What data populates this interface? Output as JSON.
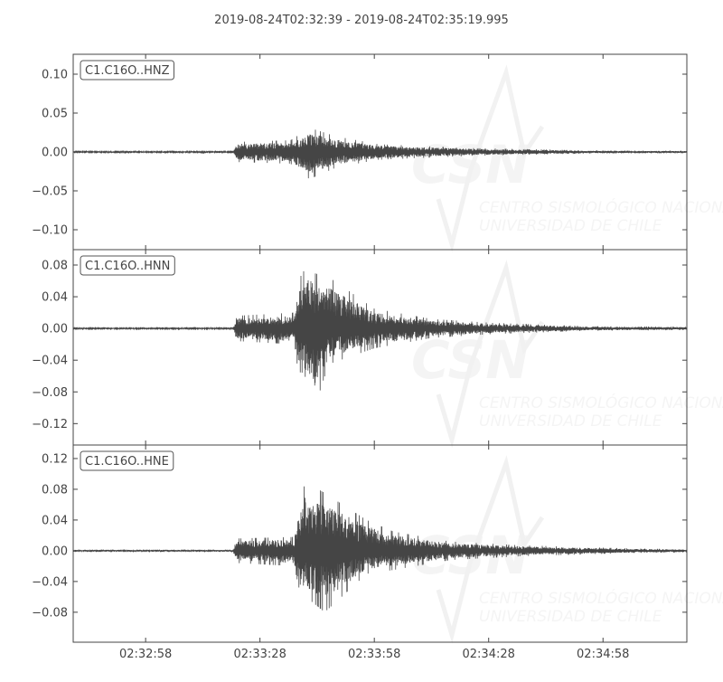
{
  "chart_data": {
    "type": "line",
    "title": "2019-08-24T02:32:39  -  2019-08-24T02:35:19.995",
    "x_range": [
      "02:32:39",
      "02:35:19.995"
    ],
    "x_ticks": [
      "02:32:58",
      "02:33:28",
      "02:33:58",
      "02:34:28",
      "02:34:58"
    ],
    "line_color": "#454545",
    "grid": false,
    "watermark": {
      "logo": "CSN",
      "line1": "CENTRO SISMOLÓGICO NACIONAL",
      "line2": "UNIVERSIDAD DE CHILE"
    },
    "traces": [
      {
        "name": "C1.C16O..HNZ",
        "ylim": [
          -0.1256,
          0.1256
        ],
        "y_ticks": [
          "0.10",
          "0.05",
          "0.00",
          "−0.05",
          "−0.10"
        ],
        "y_tick_values": [
          0.1,
          0.05,
          0.0,
          -0.05,
          -0.1
        ],
        "envelope": [
          {
            "t": "02:32:39",
            "max": 0.001,
            "min": -0.001
          },
          {
            "t": "02:33:21",
            "max": 0.001,
            "min": -0.001
          },
          {
            "t": "02:33:22",
            "max": 0.013,
            "min": -0.013
          },
          {
            "t": "02:33:36",
            "max": 0.015,
            "min": -0.015
          },
          {
            "t": "02:33:41",
            "max": 0.031,
            "min": -0.035
          },
          {
            "t": "02:33:48",
            "max": 0.02,
            "min": -0.02
          },
          {
            "t": "02:33:59",
            "max": 0.01,
            "min": -0.01
          },
          {
            "t": "02:34:23",
            "max": 0.005,
            "min": -0.005
          },
          {
            "t": "02:34:54",
            "max": 0.002,
            "min": -0.002
          },
          {
            "t": "02:35:20",
            "max": 0.0015,
            "min": -0.0015
          }
        ]
      },
      {
        "name": "C1.C16O..HNN",
        "ylim": [
          -0.147,
          0.0994
        ],
        "y_ticks": [
          "0.08",
          "0.04",
          "0.00",
          "−0.04",
          "−0.08",
          "−0.12"
        ],
        "y_tick_values": [
          0.08,
          0.04,
          0.0,
          -0.04,
          -0.08,
          -0.12
        ],
        "envelope": [
          {
            "t": "02:32:39",
            "max": 0.001,
            "min": -0.001
          },
          {
            "t": "02:33:21",
            "max": 0.001,
            "min": -0.001
          },
          {
            "t": "02:33:22",
            "max": 0.016,
            "min": -0.016
          },
          {
            "t": "02:33:37",
            "max": 0.02,
            "min": -0.02
          },
          {
            "t": "02:33:38",
            "max": 0.06,
            "min": -0.07
          },
          {
            "t": "02:33:41",
            "max": 0.085,
            "min": -0.08
          },
          {
            "t": "02:33:42",
            "max": 0.07,
            "min": -0.105
          },
          {
            "t": "02:33:46",
            "max": 0.065,
            "min": -0.045
          },
          {
            "t": "02:33:58",
            "max": 0.025,
            "min": -0.025
          },
          {
            "t": "02:34:13",
            "max": 0.012,
            "min": -0.012
          },
          {
            "t": "02:34:29",
            "max": 0.007,
            "min": -0.007
          },
          {
            "t": "02:34:53",
            "max": 0.003,
            "min": -0.003
          },
          {
            "t": "02:35:20",
            "max": 0.002,
            "min": -0.002
          }
        ]
      },
      {
        "name": "C1.C16O..HNE",
        "ylim": [
          -0.119,
          0.1376
        ],
        "y_ticks": [
          "0.12",
          "0.08",
          "0.04",
          "0.00",
          "−0.04",
          "−0.08"
        ],
        "y_tick_values": [
          0.12,
          0.08,
          0.04,
          0.0,
          -0.04,
          -0.08
        ],
        "envelope": [
          {
            "t": "02:32:39",
            "max": 0.0015,
            "min": -0.0015
          },
          {
            "t": "02:33:21",
            "max": 0.0015,
            "min": -0.0015
          },
          {
            "t": "02:33:22",
            "max": 0.016,
            "min": -0.016
          },
          {
            "t": "02:33:37",
            "max": 0.018,
            "min": -0.02
          },
          {
            "t": "02:33:38",
            "max": 0.06,
            "min": -0.06
          },
          {
            "t": "02:33:40",
            "max": 0.09,
            "min": -0.06
          },
          {
            "t": "02:33:45",
            "max": 0.075,
            "min": -0.08
          },
          {
            "t": "02:33:56",
            "max": 0.04,
            "min": -0.03
          },
          {
            "t": "02:34:03",
            "max": 0.025,
            "min": -0.025
          },
          {
            "t": "02:34:18",
            "max": 0.012,
            "min": -0.012
          },
          {
            "t": "02:34:37",
            "max": 0.007,
            "min": -0.007
          },
          {
            "t": "02:35:05",
            "max": 0.003,
            "min": -0.003
          },
          {
            "t": "02:35:20",
            "max": 0.002,
            "min": -0.002
          }
        ]
      }
    ]
  }
}
